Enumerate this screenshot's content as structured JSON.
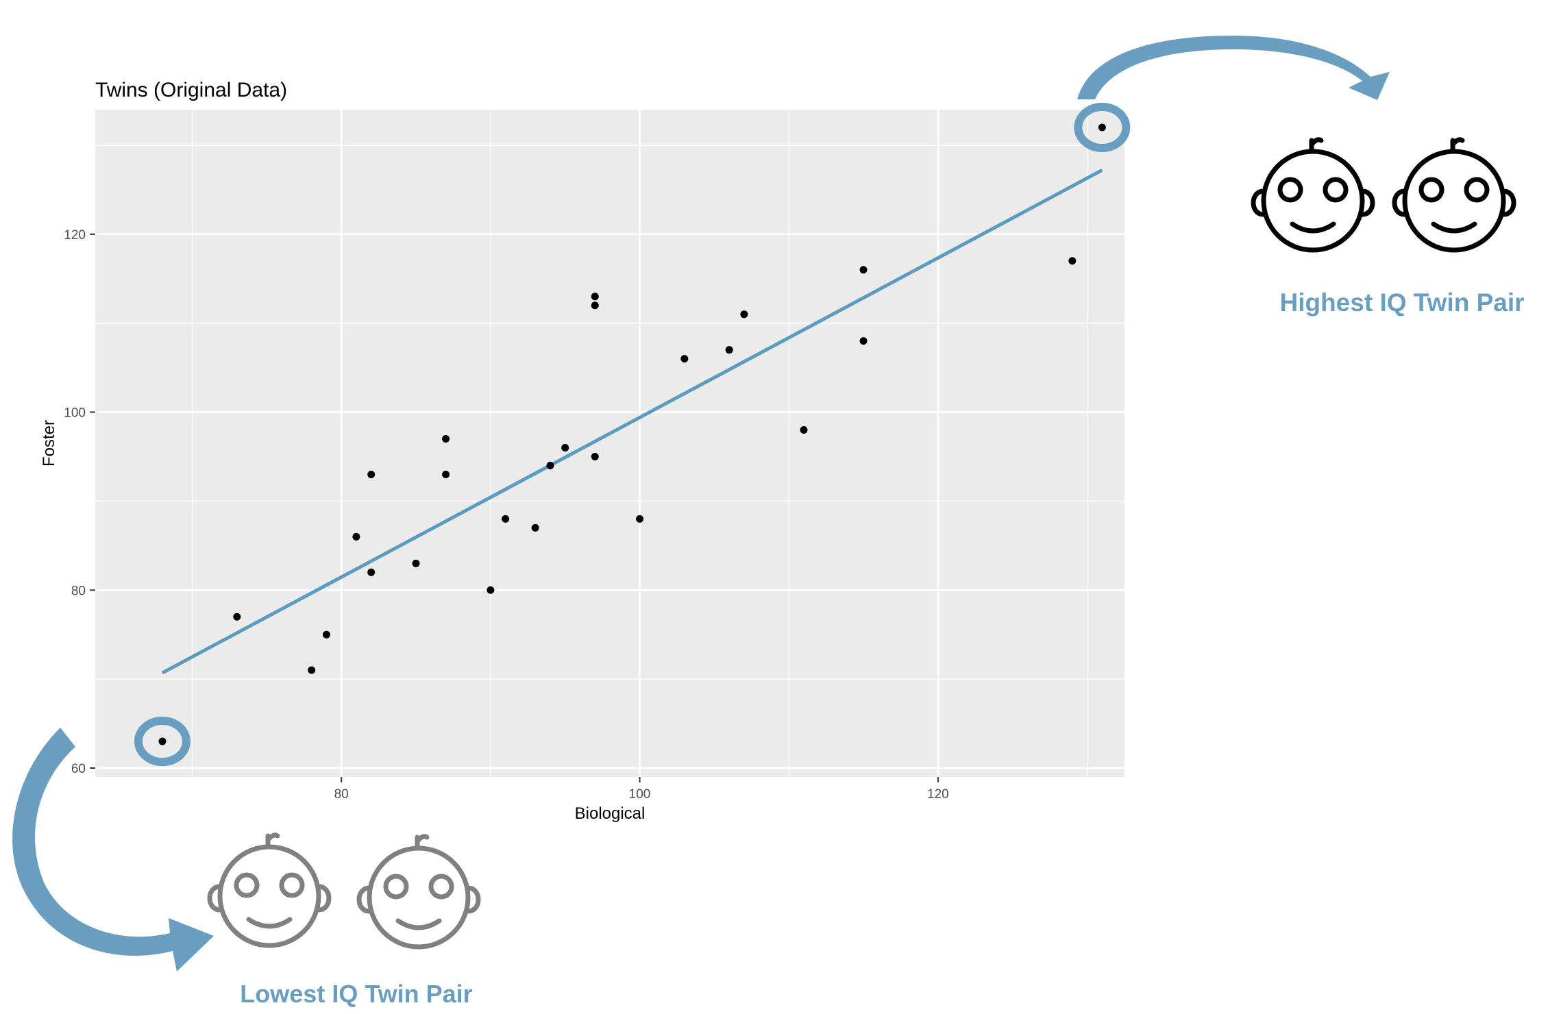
{
  "chart_data": {
    "type": "scatter",
    "title": "Twins (Original Data)",
    "xlabel": "Biological",
    "ylabel": "Foster",
    "xlim": [
      63.5,
      132.5
    ],
    "ylim": [
      59,
      134
    ],
    "x_ticks": [
      80,
      100,
      120
    ],
    "y_ticks": [
      60,
      80,
      100,
      120
    ],
    "x_minor": [
      70,
      90,
      110,
      130
    ],
    "y_minor": [
      70,
      90,
      110,
      130
    ],
    "grid": true,
    "point_color": "#000000",
    "line_color": "#5b9bbf",
    "points": [
      {
        "x": 68,
        "y": 63
      },
      {
        "x": 73,
        "y": 77
      },
      {
        "x": 78,
        "y": 71
      },
      {
        "x": 79,
        "y": 75
      },
      {
        "x": 81,
        "y": 86
      },
      {
        "x": 82,
        "y": 82
      },
      {
        "x": 82,
        "y": 93
      },
      {
        "x": 85,
        "y": 83
      },
      {
        "x": 87,
        "y": 93
      },
      {
        "x": 87,
        "y": 97
      },
      {
        "x": 90,
        "y": 80
      },
      {
        "x": 91,
        "y": 88
      },
      {
        "x": 93,
        "y": 87
      },
      {
        "x": 94,
        "y": 94
      },
      {
        "x": 95,
        "y": 96
      },
      {
        "x": 97,
        "y": 95
      },
      {
        "x": 97,
        "y": 112
      },
      {
        "x": 97,
        "y": 113
      },
      {
        "x": 100,
        "y": 88
      },
      {
        "x": 103,
        "y": 106
      },
      {
        "x": 106,
        "y": 107
      },
      {
        "x": 107,
        "y": 111
      },
      {
        "x": 111,
        "y": 98
      },
      {
        "x": 115,
        "y": 108
      },
      {
        "x": 115,
        "y": 116
      },
      {
        "x": 129,
        "y": 117
      },
      {
        "x": 131,
        "y": 132
      }
    ],
    "fit_line": {
      "x": [
        68,
        131
      ],
      "y": [
        70.7,
        127.2
      ]
    },
    "highlighted": [
      {
        "x": 68,
        "y": 63
      },
      {
        "x": 131,
        "y": 132
      }
    ],
    "annotations": {
      "highest": "Highest IQ Twin Pair",
      "lowest": "Lowest IQ Twin Pair",
      "accent_color": "#6a9ec0",
      "high_face_color": "#000000",
      "low_face_color": "#808080"
    }
  }
}
